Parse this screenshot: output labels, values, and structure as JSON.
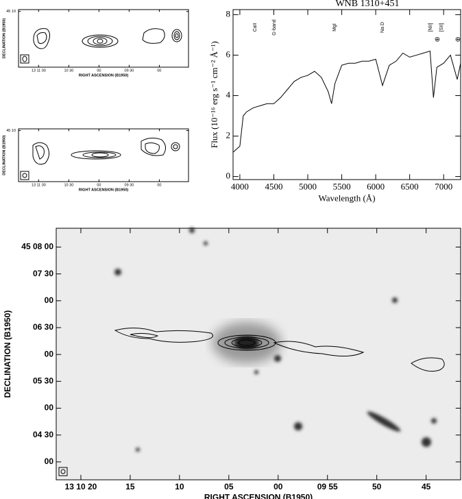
{
  "chart_data": [
    {
      "type": "contour",
      "xlabel": "RIGHT ASCENSION (B1950)",
      "ylabel": "DECLINATION (B1950)",
      "xlim": [
        47480,
        47311
      ],
      "xticks": [
        {
          "value": 47460,
          "label": "13 11 00"
        },
        {
          "value": 47430,
          "label": "10 30"
        },
        {
          "value": 47400,
          "label": "00"
        },
        {
          "value": 47370,
          "label": "09 30"
        },
        {
          "value": 47340,
          "label": "00"
        }
      ],
      "ylim": [
        162540,
        162602
      ],
      "yticks": [
        {
          "value": 162600,
          "label": "45 10"
        }
      ]
    },
    {
      "type": "contour",
      "xlabel": "RIGHT ASCENSION (B1950)",
      "ylabel": "DECLINATION (B1950)",
      "xlim": [
        47480,
        47311
      ],
      "xticks": [
        {
          "value": 47460,
          "label": "13 11 00"
        },
        {
          "value": 47430,
          "label": "10 30"
        },
        {
          "value": 47400,
          "label": "00"
        },
        {
          "value": 47370,
          "label": "09 30"
        },
        {
          "value": 47340,
          "label": "00"
        }
      ],
      "ylim": [
        162540,
        162602
      ],
      "yticks": [
        {
          "value": 162600,
          "label": "45 10"
        }
      ]
    },
    {
      "type": "line",
      "title": "WNB 1310+451",
      "xlabel": "Wavelength (Å)",
      "ylabel": "Flux (10⁻¹⁶ erg s⁻¹ cm⁻² Å⁻¹)",
      "x": [
        3900,
        4000,
        4050,
        4100,
        4200,
        4300,
        4400,
        4500,
        4600,
        4700,
        4800,
        4900,
        5000,
        5100,
        5200,
        5300,
        5350,
        5400,
        5500,
        5600,
        5700,
        5800,
        5900,
        6000,
        6100,
        6200,
        6300,
        6400,
        6500,
        6600,
        6700,
        6800,
        6850,
        6900,
        7000,
        7100,
        7200,
        7250
      ],
      "series": [
        {
          "name": "WNB 1310+451",
          "color": "#000000",
          "values": [
            1.2,
            1.5,
            3.0,
            3.2,
            3.4,
            3.5,
            3.6,
            3.6,
            3.9,
            4.3,
            4.7,
            4.9,
            5.0,
            5.2,
            4.9,
            4.2,
            3.6,
            4.6,
            5.5,
            5.6,
            5.6,
            5.7,
            5.7,
            5.8,
            4.5,
            5.5,
            5.7,
            6.1,
            5.9,
            6.0,
            6.1,
            6.2,
            3.9,
            5.4,
            5.6,
            6.0,
            4.8,
            5.6
          ]
        }
      ],
      "xlim": [
        3900,
        7250
      ],
      "xticks": [
        4000,
        4500,
        5000,
        5500,
        6000,
        6500,
        7000
      ],
      "ylim": [
        -0.15,
        8.25
      ],
      "yticks": [
        0,
        2,
        4,
        6,
        8
      ],
      "annotations": [
        "CaII",
        "G-band",
        "MgI",
        "Na D",
        "[NII]",
        "[SII]",
        "⊕",
        "⊕"
      ]
    },
    {
      "type": "image",
      "xlabel": "RIGHT ASCENSION (B1950)",
      "ylabel": "DECLINATION (B1950)",
      "xlim": [
        47422.5,
        47381.5
      ],
      "xticks": [
        {
          "value": 47420,
          "label": "13 10 20"
        },
        {
          "value": 47415,
          "label": "15"
        },
        {
          "value": 47410,
          "label": "10"
        },
        {
          "value": 47405,
          "label": "05"
        },
        {
          "value": 47400,
          "label": "00"
        },
        {
          "value": 47395,
          "label": "09 55"
        },
        {
          "value": 47390,
          "label": "50"
        },
        {
          "value": 47385,
          "label": "45"
        }
      ],
      "ylim": [
        162220,
        162501
      ],
      "yticks": [
        {
          "value": 162480,
          "label": "45 08 00"
        },
        {
          "value": 162450,
          "label": "07 30"
        },
        {
          "value": 162420,
          "label": "00"
        },
        {
          "value": 162390,
          "label": "06 30"
        },
        {
          "value": 162360,
          "label": "00"
        },
        {
          "value": 162330,
          "label": "05 30"
        },
        {
          "value": 162300,
          "label": "00"
        },
        {
          "value": 162270,
          "label": "04 30"
        },
        {
          "value": 162240,
          "label": "00"
        }
      ]
    }
  ]
}
